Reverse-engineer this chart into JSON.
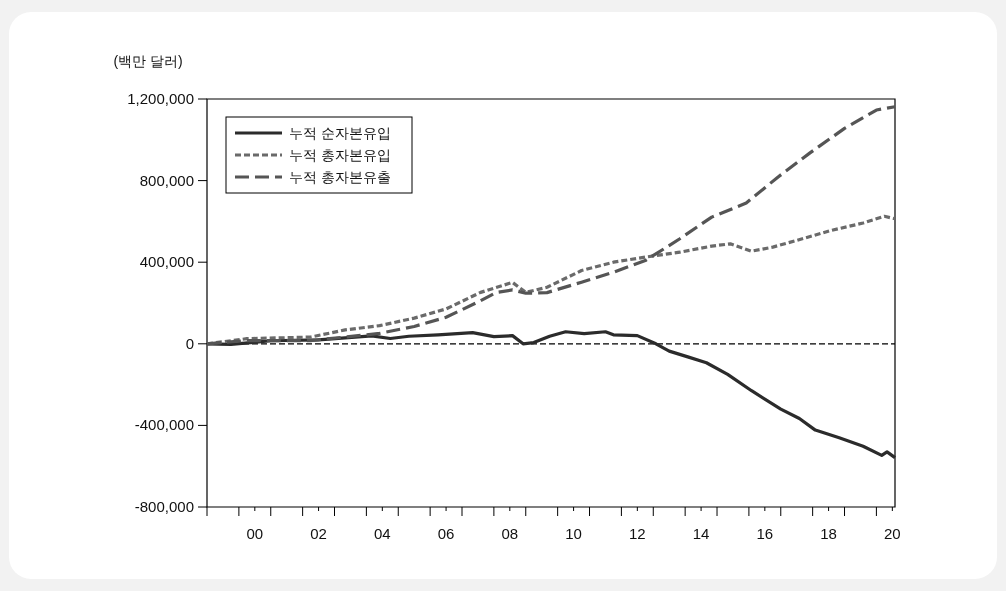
{
  "chart_data": {
    "type": "line",
    "ylabel": "(백만 달러)",
    "xlim": [
      "1999-01",
      "2020-08"
    ],
    "xticks": [
      {
        "value": "1999-01",
        "label": null
      },
      {
        "value": "2000-01",
        "label": null
      },
      {
        "value": "2000-07",
        "label": "00"
      },
      {
        "value": "2001-01",
        "label": null
      },
      {
        "value": "2002-01",
        "label": null
      },
      {
        "value": "2002-07",
        "label": "02"
      },
      {
        "value": "2003-01",
        "label": null
      },
      {
        "value": "2004-01",
        "label": null
      },
      {
        "value": "2004-07",
        "label": "04"
      },
      {
        "value": "2005-01",
        "label": null
      },
      {
        "value": "2006-01",
        "label": null
      },
      {
        "value": "2006-07",
        "label": "06"
      },
      {
        "value": "2007-01",
        "label": null
      },
      {
        "value": "2008-01",
        "label": null
      },
      {
        "value": "2008-07",
        "label": "08"
      },
      {
        "value": "2009-01",
        "label": null
      },
      {
        "value": "2010-01",
        "label": null
      },
      {
        "value": "2010-07",
        "label": "10"
      },
      {
        "value": "2011-01",
        "label": null
      },
      {
        "value": "2012-01",
        "label": null
      },
      {
        "value": "2012-07",
        "label": "12"
      },
      {
        "value": "2013-01",
        "label": null
      },
      {
        "value": "2014-01",
        "label": null
      },
      {
        "value": "2014-07",
        "label": "14"
      },
      {
        "value": "2015-01",
        "label": null
      },
      {
        "value": "2016-01",
        "label": null
      },
      {
        "value": "2016-07",
        "label": "16"
      },
      {
        "value": "2017-01",
        "label": null
      },
      {
        "value": "2018-01",
        "label": null
      },
      {
        "value": "2018-07",
        "label": "18"
      },
      {
        "value": "2019-01",
        "label": null
      },
      {
        "value": "2020-01",
        "label": null
      },
      {
        "value": "2020-07",
        "label": "20"
      }
    ],
    "ylim": [
      -800000,
      1200000
    ],
    "yticks": [
      {
        "value": -800000,
        "label": "-800,000"
      },
      {
        "value": -400000,
        "label": "-400,000"
      },
      {
        "value": 0,
        "label": "0"
      },
      {
        "value": 400000,
        "label": "400,000"
      },
      {
        "value": 800000,
        "label": "800,000"
      },
      {
        "value": 1200000,
        "label": "1,200,000"
      }
    ],
    "grid": false,
    "legend": "top left",
    "ref_lines": [
      {
        "axis": "y",
        "value": 0,
        "label": null,
        "color": "#000000",
        "line_style": "dashed"
      }
    ],
    "series": [
      {
        "name": "누적 순자본유입",
        "color": "#2b2b2b",
        "line_style": "solid",
        "x": [
          "1999-01",
          "1999-10",
          "2001-01",
          "2002-07",
          "2004-03",
          "2004-10",
          "2005-05",
          "2006-04",
          "2007-05",
          "2008-01",
          "2008-08",
          "2008-12",
          "2009-04",
          "2009-10",
          "2010-04",
          "2010-11",
          "2011-07",
          "2011-10",
          "2012-07",
          "2013-02",
          "2013-07",
          "2014-02",
          "2014-09",
          "2015-05",
          "2016-02",
          "2017-01",
          "2017-08",
          "2018-02",
          "2018-11",
          "2019-08",
          "2020-03",
          "2020-05",
          "2020-08"
        ],
        "values": [
          0,
          -3000,
          15000,
          19000,
          39000,
          26000,
          37000,
          44000,
          55000,
          35000,
          40000,
          0,
          6000,
          37000,
          59000,
          50000,
          59000,
          44000,
          40000,
          0,
          -36000,
          -64000,
          -93000,
          -150000,
          -230000,
          -320000,
          -366000,
          -423000,
          -461000,
          -502000,
          -547000,
          -530000,
          -558000
        ]
      },
      {
        "name": "누적 총자본유입",
        "color": "#6a6a6a",
        "line_style": "dotted",
        "x": [
          "1999-01",
          "2000-04",
          "2002-04",
          "2003-05",
          "2004-06",
          "2005-07",
          "2006-07",
          "2007-08",
          "2008-08",
          "2009-01",
          "2009-09",
          "2010-10",
          "2011-10",
          "2012-10",
          "2013-11",
          "2014-11",
          "2015-06",
          "2016-02",
          "2016-10",
          "2017-07",
          "2018-08",
          "2019-08",
          "2020-04",
          "2020-08"
        ],
        "values": [
          0,
          25000,
          33000,
          68000,
          89000,
          126000,
          171000,
          252000,
          301000,
          252000,
          277000,
          359000,
          400000,
          425000,
          449000,
          479000,
          490000,
          454000,
          474000,
          507000,
          556000,
          592000,
          625000,
          613000
        ]
      },
      {
        "name": "누적 총자본유출",
        "color": "#555555",
        "line_style": "dashed",
        "x": [
          "1999-01",
          "2000-04",
          "2002-04",
          "2003-05",
          "2004-06",
          "2005-07",
          "2006-07",
          "2007-08",
          "2008-02",
          "2008-08",
          "2009-01",
          "2009-09",
          "2010-10",
          "2011-10",
          "2012-10",
          "2013-11",
          "2014-11",
          "2015-12",
          "2016-12",
          "2017-12",
          "2019-01",
          "2020-01",
          "2020-08"
        ],
        "values": [
          0,
          16000,
          16000,
          33000,
          51000,
          85000,
          130000,
          211000,
          252000,
          264000,
          248000,
          251000,
          302000,
          351000,
          408000,
          515000,
          621000,
          690000,
          818000,
          936000,
          1056000,
          1146000,
          1162000
        ]
      }
    ]
  }
}
